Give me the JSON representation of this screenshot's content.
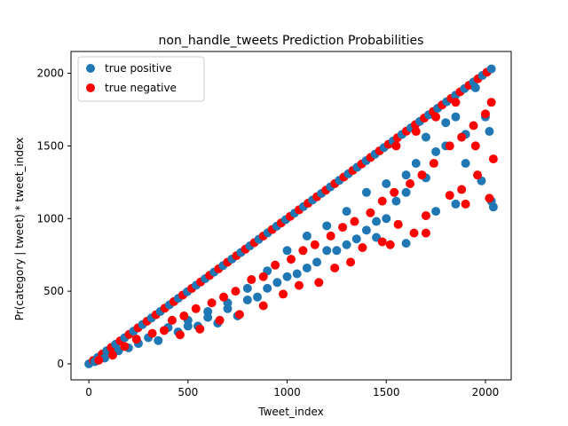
{
  "chart_data": {
    "type": "scatter",
    "title": "non_handle_tweets Prediction Probabilities",
    "xlabel": "Tweet_index",
    "ylabel": "Pr(category | tweet) * tweet_index",
    "xlim": [
      -90,
      2130
    ],
    "ylim": [
      -110,
      2150
    ],
    "xticks": [
      0,
      500,
      1000,
      1500,
      2000
    ],
    "yticks": [
      0,
      500,
      1000,
      1500,
      2000
    ],
    "grid": false,
    "legend_position": "top-left",
    "series": [
      {
        "name": "true positive",
        "color": "#1f77b4",
        "points": [
          [
            30,
            15
          ],
          [
            80,
            40
          ],
          [
            150,
            90
          ],
          [
            200,
            110
          ],
          [
            250,
            140
          ],
          [
            300,
            180
          ],
          [
            350,
            160
          ],
          [
            400,
            250
          ],
          [
            450,
            220
          ],
          [
            500,
            300
          ],
          [
            550,
            260
          ],
          [
            600,
            360
          ],
          [
            650,
            280
          ],
          [
            700,
            420
          ],
          [
            750,
            330
          ],
          [
            800,
            520
          ],
          [
            850,
            460
          ],
          [
            900,
            640
          ],
          [
            950,
            560
          ],
          [
            1000,
            780
          ],
          [
            1050,
            620
          ],
          [
            1100,
            880
          ],
          [
            1150,
            700
          ],
          [
            1200,
            950
          ],
          [
            1250,
            780
          ],
          [
            1300,
            1050
          ],
          [
            1350,
            860
          ],
          [
            1400,
            1180
          ],
          [
            1450,
            980
          ],
          [
            1500,
            1240
          ],
          [
            1550,
            1120
          ],
          [
            1600,
            1300
          ],
          [
            1650,
            1380
          ],
          [
            1700,
            1560
          ],
          [
            1750,
            1460
          ],
          [
            1800,
            1660
          ],
          [
            1850,
            1700
          ],
          [
            1900,
            1580
          ],
          [
            1950,
            1900
          ],
          [
            2000,
            1700
          ],
          [
            2020,
            1600
          ],
          [
            2040,
            1080
          ],
          [
            1980,
            1260
          ],
          [
            1900,
            1380
          ],
          [
            1800,
            1500
          ],
          [
            1700,
            1280
          ],
          [
            1600,
            1180
          ],
          [
            1500,
            1000
          ],
          [
            1400,
            920
          ],
          [
            1300,
            820
          ],
          [
            1200,
            780
          ],
          [
            1100,
            660
          ],
          [
            1000,
            600
          ],
          [
            900,
            520
          ],
          [
            800,
            440
          ],
          [
            700,
            380
          ],
          [
            600,
            320
          ],
          [
            500,
            260
          ],
          [
            1450,
            870
          ],
          [
            1600,
            830
          ],
          [
            1750,
            1050
          ],
          [
            1850,
            1100
          ],
          [
            2030,
            1120
          ]
        ]
      },
      {
        "name": "true negative",
        "color": "#ff0000",
        "points": [
          [
            50,
            25
          ],
          [
            120,
            60
          ],
          [
            180,
            120
          ],
          [
            240,
            170
          ],
          [
            320,
            210
          ],
          [
            380,
            230
          ],
          [
            420,
            300
          ],
          [
            480,
            330
          ],
          [
            540,
            380
          ],
          [
            620,
            420
          ],
          [
            680,
            460
          ],
          [
            740,
            500
          ],
          [
            820,
            580
          ],
          [
            880,
            600
          ],
          [
            940,
            680
          ],
          [
            1020,
            720
          ],
          [
            1080,
            780
          ],
          [
            1140,
            820
          ],
          [
            1220,
            880
          ],
          [
            1280,
            940
          ],
          [
            1340,
            980
          ],
          [
            1420,
            1040
          ],
          [
            1480,
            1120
          ],
          [
            1540,
            1180
          ],
          [
            1620,
            1240
          ],
          [
            1680,
            1300
          ],
          [
            1740,
            1380
          ],
          [
            1820,
            1500
          ],
          [
            1880,
            1560
          ],
          [
            1940,
            1640
          ],
          [
            2000,
            1720
          ],
          [
            2030,
            1800
          ],
          [
            2040,
            1410
          ],
          [
            1960,
            1300
          ],
          [
            1880,
            1200
          ],
          [
            1820,
            1160
          ],
          [
            1700,
            1020
          ],
          [
            1640,
            900
          ],
          [
            1560,
            960
          ],
          [
            1480,
            840
          ],
          [
            1380,
            800
          ],
          [
            1320,
            700
          ],
          [
            1240,
            660
          ],
          [
            1160,
            560
          ],
          [
            1060,
            540
          ],
          [
            980,
            480
          ],
          [
            880,
            400
          ],
          [
            760,
            340
          ],
          [
            660,
            300
          ],
          [
            560,
            240
          ],
          [
            460,
            200
          ],
          [
            1520,
            820
          ],
          [
            1700,
            900
          ],
          [
            1900,
            1100
          ],
          [
            2020,
            1140
          ],
          [
            1950,
            1500
          ],
          [
            1850,
            1800
          ],
          [
            1750,
            1700
          ],
          [
            1650,
            1600
          ],
          [
            1550,
            1500
          ]
        ]
      }
    ],
    "diagonal": {
      "from": [
        0,
        0
      ],
      "to": [
        2030,
        2030
      ]
    }
  }
}
